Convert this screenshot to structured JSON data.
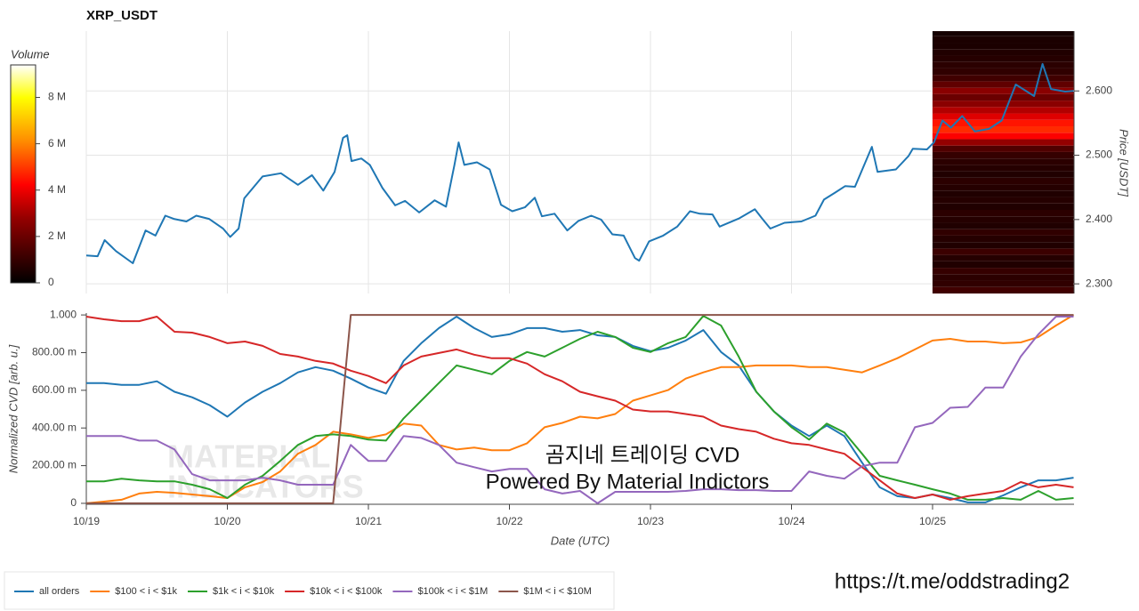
{
  "chart_data": [
    {
      "type": "line",
      "title": "XRP_USDT",
      "y_label": "Price [USDT]",
      "xlim": [
        0,
        7
      ],
      "ylim": [
        2.285,
        2.693
      ],
      "yticks": [
        {
          "value": 2.3,
          "label": "2.300"
        },
        {
          "value": 2.4,
          "label": "2.400"
        },
        {
          "value": 2.5,
          "label": "2.500"
        },
        {
          "value": 2.6,
          "label": "2.600"
        }
      ],
      "grid": true,
      "series": [
        {
          "name": "price",
          "color": "#1f77b4",
          "x": [
            0,
            0.08,
            0.13,
            0.21,
            0.33,
            0.42,
            0.49,
            0.56,
            0.62,
            0.71,
            0.78,
            0.87,
            0.97,
            1.02,
            1.08,
            1.12,
            1.25,
            1.38,
            1.5,
            1.6,
            1.68,
            1.76,
            1.82,
            1.85,
            1.88,
            1.95,
            2.01,
            2.1,
            2.19,
            2.26,
            2.36,
            2.47,
            2.55,
            2.61,
            2.64,
            2.68,
            2.77,
            2.86,
            2.94,
            3.02,
            3.11,
            3.18,
            3.23,
            3.32,
            3.41,
            3.49,
            3.58,
            3.65,
            3.73,
            3.81,
            3.89,
            3.92,
            3.99,
            4.09,
            4.19,
            4.28,
            4.35,
            4.44,
            4.49,
            4.63,
            4.74,
            4.79,
            4.85,
            4.95,
            5.07,
            5.17,
            5.23,
            5.31,
            5.38,
            5.45,
            5.57,
            5.61,
            5.74,
            5.83,
            5.86,
            5.96,
            6.01,
            6.07,
            6.13,
            6.21,
            6.3,
            6.4,
            6.49,
            6.59,
            6.72,
            6.78,
            6.84,
            6.94,
            7.0
          ],
          "values": [
            2.344,
            2.343,
            2.368,
            2.351,
            2.332,
            2.383,
            2.375,
            2.406,
            2.401,
            2.397,
            2.406,
            2.401,
            2.386,
            2.373,
            2.386,
            2.433,
            2.467,
            2.472,
            2.454,
            2.469,
            2.445,
            2.474,
            2.527,
            2.531,
            2.491,
            2.495,
            2.485,
            2.449,
            2.422,
            2.429,
            2.411,
            2.43,
            2.42,
            2.485,
            2.52,
            2.485,
            2.489,
            2.478,
            2.423,
            2.413,
            2.419,
            2.434,
            2.405,
            2.409,
            2.383,
            2.398,
            2.406,
            2.4,
            2.377,
            2.375,
            2.34,
            2.336,
            2.366,
            2.375,
            2.389,
            2.413,
            2.409,
            2.408,
            2.389,
            2.402,
            2.416,
            2.402,
            2.386,
            2.395,
            2.397,
            2.406,
            2.431,
            2.442,
            2.452,
            2.451,
            2.513,
            2.474,
            2.478,
            2.499,
            2.51,
            2.509,
            2.52,
            2.554,
            2.543,
            2.561,
            2.537,
            2.541,
            2.554,
            2.61,
            2.592,
            2.642,
            2.603,
            2.599,
            2.6
          ]
        }
      ],
      "heatmap": {
        "xlim": [
          6,
          7
        ],
        "levels": [
          2.29,
          2.3,
          2.31,
          2.32,
          2.33,
          2.34,
          2.35,
          2.36,
          2.37,
          2.38,
          2.39,
          2.4,
          2.41,
          2.42,
          2.43,
          2.44,
          2.45,
          2.46,
          2.47,
          2.48,
          2.49,
          2.5,
          2.51,
          2.52,
          2.53,
          2.54,
          2.55,
          2.56,
          2.57,
          2.58,
          2.59,
          2.6,
          2.61,
          2.62,
          2.63,
          2.64,
          2.65,
          2.66,
          2.67,
          2.68,
          2.69
        ],
        "volumes": [
          1200000,
          900000,
          800000,
          1000000,
          600000,
          700000,
          1100000,
          600000,
          700000,
          900000,
          600000,
          700000,
          800000,
          600000,
          700000,
          600000,
          700000,
          800000,
          600000,
          700000,
          800000,
          1000000,
          1500000,
          2800000,
          4200000,
          4800000,
          4500000,
          3800000,
          3200000,
          2600000,
          2000000,
          2600000,
          1800000,
          1200000,
          900000,
          800000,
          700000,
          600000,
          500000,
          500000,
          400000
        ]
      },
      "colorbar": {
        "title": "Volume",
        "clim": [
          0,
          9400000
        ],
        "ticks": [
          0,
          {
            "value": 2000000,
            "label": "2 M"
          },
          {
            "value": 4000000,
            "label": "4 M"
          },
          {
            "value": 6000000,
            "label": "6 M"
          },
          {
            "value": 8000000,
            "label": "8 M"
          }
        ]
      }
    },
    {
      "type": "line",
      "x_label": "Date (UTC)",
      "y_label": "Normalized CVD [arb. u.]",
      "xlim": [
        0,
        7
      ],
      "ylim": [
        -0.005,
        1.01
      ],
      "xticks": [
        {
          "value": 0,
          "label": "10/19"
        },
        {
          "value": 1,
          "label": "10/20"
        },
        {
          "value": 2,
          "label": "10/21"
        },
        {
          "value": 3,
          "label": "10/22"
        },
        {
          "value": 4,
          "label": "10/23"
        },
        {
          "value": 5,
          "label": "10/24"
        },
        {
          "value": 6,
          "label": "10/25"
        }
      ],
      "yticks": [
        0,
        {
          "value": 0.2,
          "label": "200.00 m"
        },
        {
          "value": 0.4,
          "label": "400.00 m"
        },
        {
          "value": 0.6,
          "label": "600.00 m"
        },
        {
          "value": 0.8,
          "label": "800.00 m"
        },
        {
          "value": 1,
          "label": "1.000"
        }
      ],
      "legend": "bottom",
      "x": [
        0,
        0.125,
        0.25,
        0.375,
        0.5,
        0.625,
        0.75,
        0.875,
        1,
        1.125,
        1.25,
        1.375,
        1.5,
        1.625,
        1.75,
        1.875,
        2,
        2.125,
        2.25,
        2.375,
        2.5,
        2.625,
        2.75,
        2.875,
        3,
        3.125,
        3.25,
        3.375,
        3.5,
        3.625,
        3.75,
        3.875,
        4,
        4.125,
        4.25,
        4.375,
        4.5,
        4.625,
        4.75,
        4.875,
        5,
        5.125,
        5.25,
        5.375,
        5.5,
        5.625,
        5.75,
        5.875,
        6,
        6.125,
        6.25,
        6.375,
        6.5,
        6.625,
        6.75,
        6.875,
        7
      ],
      "series": [
        {
          "name": "all orders",
          "color": "#1f77b4",
          "values": [
            0.638,
            0.638,
            0.629,
            0.629,
            0.648,
            0.592,
            0.563,
            0.521,
            0.46,
            0.535,
            0.592,
            0.638,
            0.695,
            0.723,
            0.704,
            0.662,
            0.615,
            0.582,
            0.756,
            0.85,
            0.93,
            0.991,
            0.93,
            0.883,
            0.897,
            0.93,
            0.93,
            0.911,
            0.92,
            0.892,
            0.883,
            0.836,
            0.808,
            0.826,
            0.864,
            0.92,
            0.803,
            0.732,
            0.592,
            0.488,
            0.413,
            0.357,
            0.413,
            0.357,
            0.216,
            0.085,
            0.038,
            0.028,
            0.047,
            0.028,
            0.005,
            0.005,
            0.042,
            0.085,
            0.122,
            0.122,
            0.136
          ]
        },
        {
          "name": "$100 < i < $1k",
          "color": "#ff7f0e",
          "values": [
            0,
            0.009,
            0.019,
            0.052,
            0.061,
            0.056,
            0.047,
            0.038,
            0.028,
            0.085,
            0.113,
            0.169,
            0.263,
            0.31,
            0.38,
            0.366,
            0.347,
            0.366,
            0.423,
            0.413,
            0.31,
            0.286,
            0.296,
            0.282,
            0.282,
            0.319,
            0.404,
            0.427,
            0.46,
            0.451,
            0.474,
            0.545,
            0.573,
            0.601,
            0.662,
            0.695,
            0.723,
            0.723,
            0.732,
            0.732,
            0.732,
            0.723,
            0.723,
            0.709,
            0.695,
            0.732,
            0.77,
            0.817,
            0.864,
            0.873,
            0.859,
            0.859,
            0.85,
            0.854,
            0.883,
            0.944,
            1.0
          ]
        },
        {
          "name": "$1k < i < $10k",
          "color": "#2ca02c",
          "values": [
            0.117,
            0.117,
            0.131,
            0.122,
            0.117,
            0.117,
            0.099,
            0.075,
            0.028,
            0.099,
            0.146,
            0.225,
            0.31,
            0.357,
            0.366,
            0.357,
            0.338,
            0.333,
            0.451,
            0.545,
            0.639,
            0.732,
            0.709,
            0.685,
            0.756,
            0.803,
            0.779,
            0.826,
            0.873,
            0.911,
            0.883,
            0.826,
            0.803,
            0.85,
            0.883,
            0.995,
            0.944,
            0.779,
            0.592,
            0.488,
            0.404,
            0.338,
            0.423,
            0.376,
            0.263,
            0.146,
            0.122,
            0.099,
            0.075,
            0.052,
            0.019,
            0.019,
            0.028,
            0.019,
            0.066,
            0.019,
            0.028
          ]
        },
        {
          "name": "$10k < i < $100k",
          "color": "#d62728",
          "values": [
            0.991,
            0.977,
            0.967,
            0.967,
            0.991,
            0.911,
            0.906,
            0.883,
            0.85,
            0.859,
            0.836,
            0.793,
            0.779,
            0.756,
            0.742,
            0.704,
            0.676,
            0.638,
            0.732,
            0.779,
            0.798,
            0.817,
            0.789,
            0.77,
            0.77,
            0.742,
            0.685,
            0.648,
            0.592,
            0.568,
            0.545,
            0.498,
            0.488,
            0.488,
            0.474,
            0.46,
            0.413,
            0.394,
            0.38,
            0.343,
            0.319,
            0.31,
            0.286,
            0.263,
            0.192,
            0.122,
            0.052,
            0.028,
            0.047,
            0.019,
            0.038,
            0.052,
            0.066,
            0.113,
            0.085,
            0.099,
            0.085
          ]
        },
        {
          "name": "$100k < i < $1M",
          "color": "#9467bd",
          "values": [
            0.357,
            0.357,
            0.357,
            0.333,
            0.333,
            0.286,
            0.155,
            0.122,
            0.122,
            0.122,
            0.136,
            0.122,
            0.099,
            0.099,
            0.099,
            0.31,
            0.225,
            0.225,
            0.357,
            0.347,
            0.31,
            0.216,
            0.192,
            0.169,
            0.183,
            0.183,
            0.075,
            0.052,
            0.066,
            0,
            0.061,
            0.061,
            0.061,
            0.061,
            0.066,
            0.075,
            0.075,
            0.07,
            0.07,
            0.066,
            0.066,
            0.169,
            0.146,
            0.131,
            0.197,
            0.216,
            0.216,
            0.404,
            0.427,
            0.507,
            0.512,
            0.615,
            0.615,
            0.779,
            0.897,
            0.991,
            0.991
          ]
        },
        {
          "name": "$1M < i < $10M",
          "color": "#8c564b",
          "values": [
            0,
            0,
            0,
            0,
            0,
            0,
            0,
            0,
            0,
            0,
            0,
            0,
            0,
            0,
            0,
            1,
            1,
            1,
            1,
            1,
            1,
            1,
            1,
            1,
            1,
            1,
            1,
            1,
            1,
            1,
            1,
            1,
            1,
            1,
            1,
            1,
            1,
            1,
            1,
            1,
            1,
            1,
            1,
            1,
            1,
            1,
            1,
            1,
            1,
            1,
            1,
            1,
            1,
            1,
            1,
            1,
            1
          ]
        }
      ]
    }
  ],
  "watermark": [
    "MATERIAL",
    "INDICATORS"
  ],
  "overlay": [
    "곰지네 트레이딩 CVD",
    "Powered By Material Indictors"
  ],
  "link": "https://t.me/oddstrading2"
}
